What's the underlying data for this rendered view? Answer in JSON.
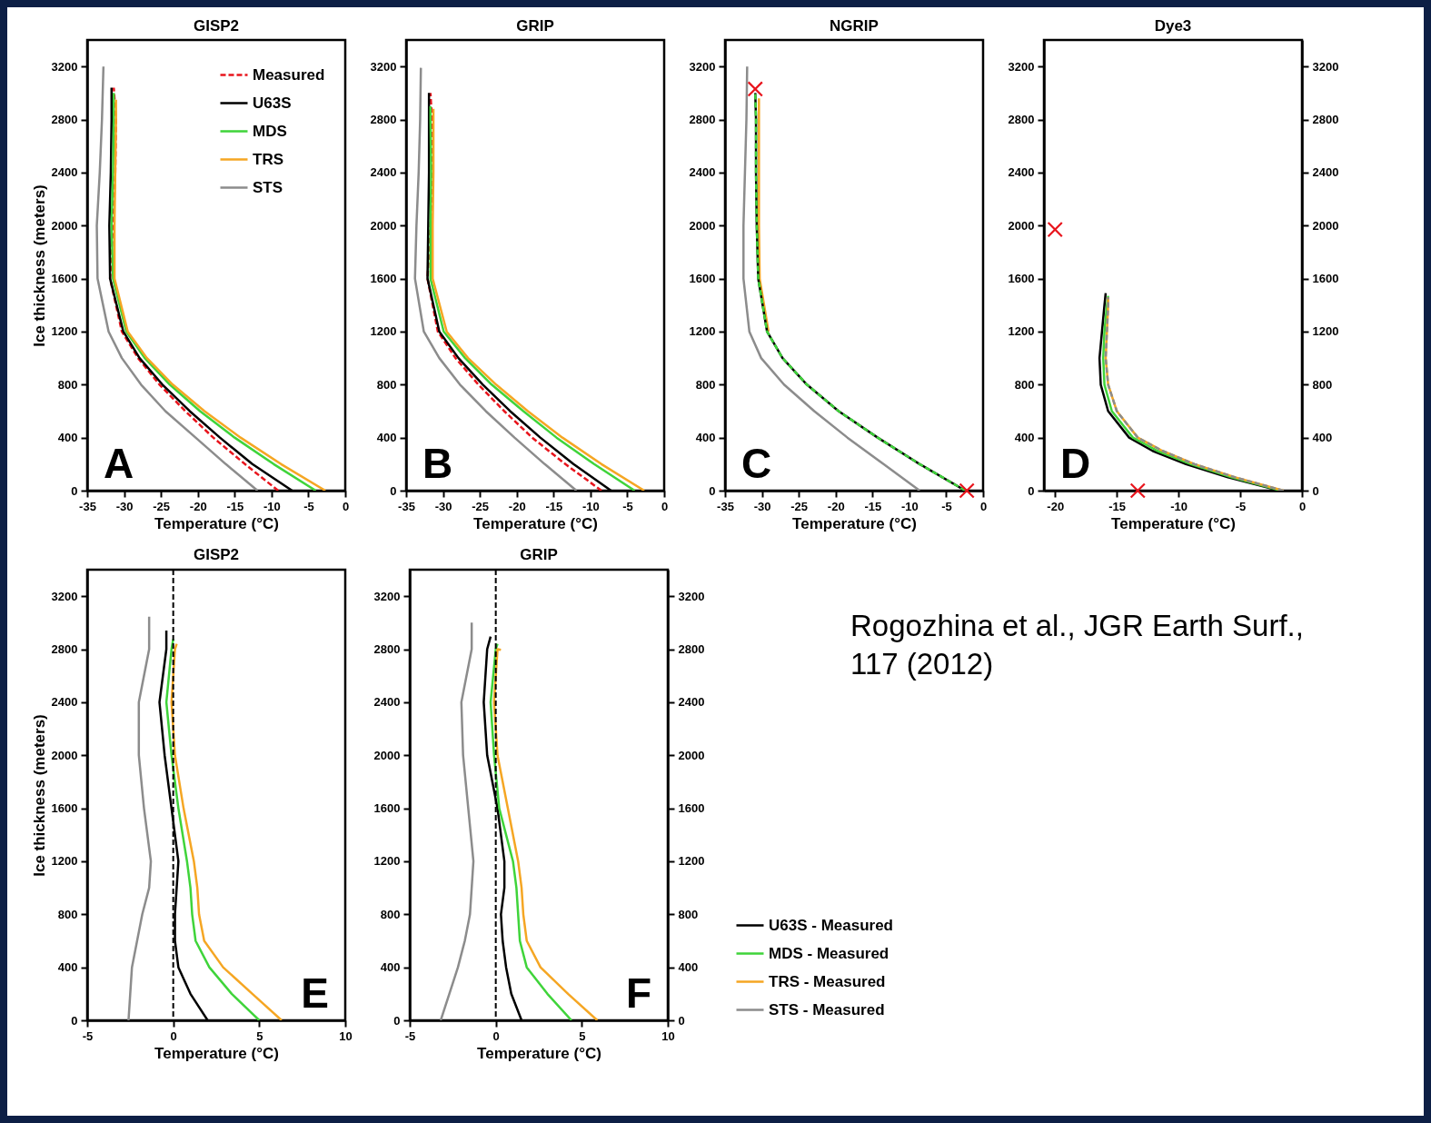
{
  "chart_data": [
    {
      "type": "line",
      "title": "GISP2",
      "xlabel": "Temperature (°C)",
      "ylabel": "Ice thickness (meters)",
      "annotations": [
        "A"
      ],
      "xlim": [
        -35,
        0
      ],
      "xticks": [
        -35,
        -30,
        -25,
        -20,
        -15,
        -10,
        -5,
        0
      ],
      "ylim": [
        0,
        3400
      ],
      "yticks": [
        0,
        400,
        800,
        1200,
        1600,
        2000,
        2400,
        2800,
        3200
      ],
      "legend": "top right",
      "series": [
        {
          "name": "Measured",
          "color": "#e8141c",
          "line_style": "dashed",
          "x": [
            -9.1,
            -13.6,
            -17.9,
            -21.7,
            -25.2,
            -28.1,
            -30.3,
            -31.9,
            -31.5,
            -31.2,
            -31.1,
            -31.4
          ],
          "values": [
            0,
            200,
            400,
            600,
            800,
            1000,
            1200,
            1600,
            2000,
            2400,
            2800,
            3040
          ]
        },
        {
          "name": "U63S",
          "color": "#000000",
          "x": [
            -7.2,
            -12.6,
            -17.0,
            -21.1,
            -24.8,
            -27.9,
            -30.1,
            -31.9,
            -32.0,
            -31.8,
            -31.7,
            -31.7
          ],
          "values": [
            0,
            200,
            400,
            600,
            800,
            1000,
            1200,
            1600,
            2000,
            2400,
            2800,
            3040
          ]
        },
        {
          "name": "MDS",
          "color": "#3fd43a",
          "x": [
            -4.0,
            -9.7,
            -15.0,
            -19.7,
            -23.8,
            -27.2,
            -29.7,
            -31.5,
            -31.7,
            -31.5,
            -31.4,
            -31.4
          ],
          "values": [
            0,
            200,
            400,
            600,
            800,
            1000,
            1200,
            1600,
            2000,
            2400,
            2800,
            3000
          ]
        },
        {
          "name": "TRS",
          "color": "#f5a623",
          "x": [
            -2.7,
            -8.7,
            -14.2,
            -19.1,
            -23.4,
            -26.9,
            -29.5,
            -31.3,
            -31.3,
            -31.2,
            -31.1,
            -31.1
          ],
          "values": [
            0,
            200,
            400,
            600,
            800,
            1000,
            1200,
            1600,
            2000,
            2400,
            2800,
            2950
          ]
        },
        {
          "name": "STS",
          "color": "#8c8c8c",
          "x": [
            -11.9,
            -16.2,
            -20.3,
            -24.4,
            -27.7,
            -30.3,
            -32.1,
            -33.6,
            -33.7,
            -33.3,
            -33.0,
            -32.8
          ],
          "values": [
            0,
            200,
            400,
            600,
            800,
            1000,
            1200,
            1600,
            2000,
            2400,
            2800,
            3200
          ]
        }
      ]
    },
    {
      "type": "line",
      "title": "GRIP",
      "xlabel": "Temperature (°C)",
      "annotations": [
        "B"
      ],
      "xlim": [
        -35,
        0
      ],
      "xticks": [
        -35,
        -30,
        -25,
        -20,
        -15,
        -10,
        -5,
        0
      ],
      "ylim": [
        0,
        3400
      ],
      "yticks": [
        0,
        400,
        800,
        1200,
        1600,
        2000,
        2400,
        2800,
        3200
      ],
      "series": [
        {
          "color": "#e8141c",
          "line_style": "dashed",
          "x": [
            -8.5,
            -13.4,
            -17.9,
            -21.7,
            -25.2,
            -28.3,
            -30.7,
            -32.1,
            -31.7,
            -31.4,
            -31.5,
            -31.7
          ],
          "values": [
            0,
            200,
            400,
            600,
            800,
            1000,
            1200,
            1600,
            2000,
            2400,
            2800,
            3000
          ]
        },
        {
          "color": "#000000",
          "x": [
            -7.2,
            -12.3,
            -16.8,
            -20.9,
            -24.6,
            -27.9,
            -30.5,
            -32.1,
            -32.0,
            -31.9,
            -31.9,
            -31.9
          ],
          "values": [
            0,
            200,
            400,
            600,
            800,
            1000,
            1200,
            1600,
            2000,
            2400,
            2800,
            3000
          ]
        },
        {
          "color": "#3fd43a",
          "x": [
            -4.0,
            -9.5,
            -14.6,
            -19.1,
            -23.4,
            -27.0,
            -29.9,
            -31.7,
            -31.7,
            -31.6,
            -31.7,
            -31.7
          ],
          "values": [
            0,
            200,
            400,
            600,
            800,
            1000,
            1200,
            1600,
            2000,
            2400,
            2800,
            2900
          ]
        },
        {
          "color": "#f5a623",
          "x": [
            -2.7,
            -8.5,
            -13.8,
            -18.5,
            -22.8,
            -26.6,
            -29.5,
            -31.4,
            -31.4,
            -31.3,
            -31.3,
            -31.3
          ],
          "values": [
            0,
            200,
            400,
            600,
            800,
            1000,
            1200,
            1600,
            2000,
            2400,
            2800,
            2880
          ]
        },
        {
          "color": "#8c8c8c",
          "x": [
            -11.9,
            -16.2,
            -20.3,
            -24.2,
            -27.7,
            -30.5,
            -32.6,
            -33.8,
            -33.6,
            -33.3,
            -33.1,
            -33.0
          ],
          "values": [
            0,
            200,
            400,
            600,
            800,
            1000,
            1200,
            1600,
            2000,
            2400,
            2800,
            3190
          ]
        }
      ]
    },
    {
      "type": "line",
      "title": "NGRIP",
      "xlabel": "Temperature (°C)",
      "annotations": [
        "C"
      ],
      "xlim": [
        -35,
        0
      ],
      "xticks": [
        -35,
        -30,
        -25,
        -20,
        -15,
        -10,
        -5,
        0
      ],
      "ylim": [
        0,
        3400
      ],
      "yticks": [
        0,
        400,
        800,
        1200,
        1600,
        2000,
        2400,
        2800,
        3200
      ],
      "series": [
        {
          "color": "#8c8c8c",
          "x": [
            -8.6,
            -13.5,
            -18.4,
            -22.9,
            -27.0,
            -30.1,
            -31.7,
            -32.5,
            -32.5,
            -32.3,
            -32.1,
            -32.0
          ],
          "values": [
            0,
            200,
            400,
            600,
            800,
            1000,
            1200,
            1600,
            2000,
            2400,
            2800,
            3200
          ]
        },
        {
          "color": "#f5a623",
          "x": [
            -29.1,
            -30.3,
            -30.4,
            -30.4,
            -30.4,
            -30.4
          ],
          "values": [
            1200,
            1600,
            2000,
            2400,
            2800,
            2960
          ]
        },
        {
          "color": "#000000",
          "x": [
            -2.4,
            -8.6,
            -14.3,
            -19.6,
            -23.9,
            -27.2,
            -29.3,
            -30.5,
            -30.7,
            -30.8,
            -30.8,
            -30.9
          ],
          "values": [
            0,
            200,
            400,
            600,
            800,
            1000,
            1200,
            1600,
            2000,
            2400,
            2800,
            3000
          ]
        },
        {
          "color": "#3fd43a",
          "line_style": "dashed",
          "x": [
            -2.4,
            -8.6,
            -14.3,
            -19.6,
            -23.9,
            -27.2,
            -29.3,
            -30.5,
            -30.7,
            -30.8,
            -30.8,
            -30.9
          ],
          "values": [
            0,
            200,
            400,
            600,
            800,
            1000,
            1200,
            1600,
            2000,
            2400,
            2800,
            3000
          ]
        },
        {
          "type": "scatter",
          "marker": "cross",
          "color": "#e8141c",
          "x": [
            -30.9,
            -2.2
          ],
          "values": [
            3030,
            0
          ]
        }
      ]
    },
    {
      "type": "line",
      "title": "Dye3",
      "xlabel": "Temperature (°C)",
      "annotations": [
        "D"
      ],
      "xlim": [
        -20.9,
        0
      ],
      "xticks": [
        -20,
        -15,
        -10,
        -5,
        0
      ],
      "ylim": [
        0,
        3400
      ],
      "yticks": [
        0,
        400,
        800,
        1200,
        1600,
        2000,
        2400,
        2800,
        3200
      ],
      "y2lim": [
        0,
        3400
      ],
      "y2ticks": [
        0,
        400,
        800,
        1200,
        1600,
        2000,
        2400,
        2800,
        3200
      ],
      "series": [
        {
          "color": "#000000",
          "x": [
            -1.8,
            -6.0,
            -9.4,
            -12.1,
            -14.0,
            -15.7,
            -16.3,
            -16.4,
            -16.2,
            -16.0,
            -15.9
          ],
          "values": [
            0,
            100,
            200,
            300,
            400,
            600,
            800,
            1000,
            1200,
            1400,
            1490
          ]
        },
        {
          "color": "#3fd43a",
          "x": [
            -1.7,
            -5.7,
            -9.0,
            -11.7,
            -13.7,
            -15.4,
            -16.0,
            -16.1,
            -16.0,
            -15.8,
            -15.7
          ],
          "values": [
            0,
            100,
            200,
            300,
            400,
            600,
            800,
            1000,
            1200,
            1400,
            1470
          ]
        },
        {
          "color": "#f5a623",
          "x": [
            -1.5,
            -5.4,
            -8.7,
            -11.3,
            -13.3,
            -15.0,
            -15.7,
            -15.9,
            -15.8,
            -15.7,
            -15.7
          ],
          "values": [
            0,
            100,
            200,
            300,
            400,
            600,
            800,
            1000,
            1200,
            1400,
            1460
          ]
        },
        {
          "color": "#8c8c8c",
          "line_style": "dashed",
          "x": [
            -1.5,
            -5.4,
            -8.7,
            -11.3,
            -13.3,
            -15.0,
            -15.7,
            -15.9,
            -15.8,
            -15.7,
            -15.7
          ],
          "values": [
            0,
            100,
            200,
            300,
            400,
            600,
            800,
            1000,
            1200,
            1400,
            1460
          ]
        },
        {
          "type": "scatter",
          "marker": "cross",
          "color": "#e8141c",
          "x": [
            -20.0,
            -13.3
          ],
          "values": [
            1970,
            0
          ]
        }
      ]
    },
    {
      "type": "line",
      "title": "GISP2",
      "xlabel": "Temperature (°C)",
      "ylabel": "Ice thickness (meters)",
      "annotations": [
        "E"
      ],
      "xlim": [
        -5,
        10
      ],
      "xticks": [
        -5,
        0,
        5,
        10
      ],
      "ylim": [
        0,
        3400
      ],
      "yticks": [
        0,
        400,
        800,
        1200,
        1600,
        2000,
        2400,
        2800,
        3200
      ],
      "ref_lines": [
        {
          "axis": "x",
          "value": 0,
          "color": "#000000",
          "line_style": "dashed"
        }
      ],
      "series": [
        {
          "color": "#000000",
          "x": [
            2.0,
            1.0,
            0.3,
            0.1,
            0.1,
            0.2,
            0.3,
            -0.1,
            -0.5,
            -0.8,
            -0.4,
            -0.4
          ],
          "values": [
            0,
            200,
            400,
            600,
            800,
            1000,
            1200,
            1600,
            2000,
            2400,
            2800,
            2940
          ]
        },
        {
          "color": "#3fd43a",
          "x": [
            5.0,
            3.4,
            2.1,
            1.3,
            1.1,
            1.0,
            0.8,
            0.3,
            -0.1,
            -0.4,
            -0.1,
            0.0
          ],
          "values": [
            0,
            200,
            400,
            600,
            800,
            1000,
            1200,
            1600,
            2000,
            2400,
            2800,
            2875
          ]
        },
        {
          "color": "#f5a623",
          "x": [
            6.3,
            4.6,
            2.9,
            1.8,
            1.5,
            1.4,
            1.2,
            0.6,
            0.1,
            -0.1,
            0.1,
            0.2
          ],
          "values": [
            0,
            200,
            400,
            600,
            800,
            1000,
            1200,
            1600,
            2000,
            2400,
            2800,
            2840
          ]
        },
        {
          "color": "#8c8c8c",
          "x": [
            -2.6,
            -2.5,
            -2.4,
            -2.1,
            -1.8,
            -1.4,
            -1.3,
            -1.7,
            -2.0,
            -2.0,
            -1.4,
            -1.4
          ],
          "values": [
            0,
            200,
            400,
            600,
            800,
            1000,
            1200,
            1600,
            2000,
            2400,
            2800,
            3045
          ]
        }
      ]
    },
    {
      "type": "line",
      "title": "GRIP",
      "xlabel": "Temperature (°C)",
      "annotations": [
        "F",
        "Rogozhina et al., JGR Earth Surf., 117 (2012)"
      ],
      "xlim": [
        -5,
        10
      ],
      "xticks": [
        -5,
        0,
        5,
        10
      ],
      "ylim": [
        0,
        3400
      ],
      "yticks": [
        0,
        400,
        800,
        1200,
        1600,
        2000,
        2400,
        2800,
        3200
      ],
      "y2lim": [
        0,
        3400
      ],
      "y2ticks": [
        0,
        400,
        800,
        1200,
        1600,
        2000,
        2400,
        2800,
        3200
      ],
      "legend": "bottom right",
      "ref_lines": [
        {
          "axis": "x",
          "value": 0,
          "color": "#000000",
          "line_style": "dashed"
        }
      ],
      "series": [
        {
          "name": "U63S - Measured",
          "color": "#000000",
          "x": [
            1.5,
            0.9,
            0.6,
            0.4,
            0.3,
            0.5,
            0.5,
            0.1,
            -0.5,
            -0.7,
            -0.5,
            -0.3
          ],
          "values": [
            0,
            200,
            400,
            600,
            800,
            1000,
            1200,
            1600,
            2000,
            2400,
            2800,
            2895
          ]
        },
        {
          "name": "MDS - Measured",
          "color": "#3fd43a",
          "x": [
            4.4,
            3.0,
            1.8,
            1.4,
            1.3,
            1.2,
            1.0,
            0.2,
            -0.1,
            -0.3,
            0.0,
            0.1
          ],
          "values": [
            0,
            200,
            400,
            600,
            800,
            1000,
            1200,
            1600,
            2000,
            2400,
            2800,
            2840
          ]
        },
        {
          "name": "TRS - Measured",
          "color": "#f5a623",
          "x": [
            5.9,
            4.2,
            2.6,
            1.8,
            1.6,
            1.5,
            1.3,
            0.7,
            0.1,
            -0.1,
            0.1,
            0.3
          ],
          "values": [
            0,
            200,
            400,
            600,
            800,
            1000,
            1200,
            1600,
            2000,
            2400,
            2800,
            2795
          ]
        },
        {
          "name": "STS - Measured",
          "color": "#8c8c8c",
          "x": [
            -3.2,
            -2.7,
            -2.2,
            -1.8,
            -1.5,
            -1.4,
            -1.3,
            -1.6,
            -1.9,
            -2.0,
            -1.4,
            -1.4
          ],
          "values": [
            0,
            200,
            400,
            600,
            800,
            1000,
            1200,
            1600,
            2000,
            2400,
            2800,
            3000
          ]
        }
      ]
    }
  ]
}
